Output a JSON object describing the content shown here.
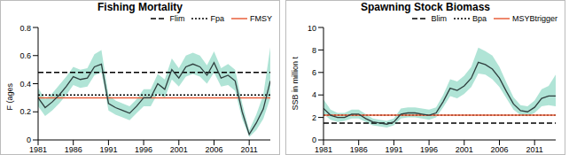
{
  "chart_data": [
    {
      "type": "line",
      "title": "Fishing Mortality",
      "y_label": "F (ages",
      "color": "#2f3f3f",
      "band_color": "#8fd8c4",
      "x": [
        1981,
        1982,
        1983,
        1984,
        1985,
        1986,
        1987,
        1988,
        1989,
        1990,
        1991,
        1992,
        1993,
        1994,
        1995,
        1996,
        1997,
        1998,
        1999,
        2000,
        2001,
        2002,
        2003,
        2004,
        2005,
        2006,
        2007,
        2008,
        2009,
        2010,
        2011,
        2012,
        2013,
        2014
      ],
      "values": [
        0.3,
        0.23,
        0.27,
        0.32,
        0.38,
        0.45,
        0.43,
        0.44,
        0.52,
        0.54,
        0.26,
        0.23,
        0.21,
        0.19,
        0.24,
        0.3,
        0.3,
        0.4,
        0.36,
        0.5,
        0.44,
        0.52,
        0.54,
        0.52,
        0.46,
        0.55,
        0.44,
        0.46,
        0.42,
        0.2,
        0.04,
        0.12,
        0.22,
        0.42
      ],
      "lower": [
        0.24,
        0.17,
        0.21,
        0.26,
        0.32,
        0.39,
        0.37,
        0.38,
        0.46,
        0.48,
        0.21,
        0.18,
        0.16,
        0.14,
        0.19,
        0.24,
        0.24,
        0.33,
        0.3,
        0.43,
        0.38,
        0.45,
        0.47,
        0.45,
        0.4,
        0.48,
        0.38,
        0.39,
        0.35,
        0.15,
        0.02,
        0.07,
        0.15,
        0.3
      ],
      "upper": [
        0.37,
        0.29,
        0.33,
        0.39,
        0.45,
        0.52,
        0.5,
        0.51,
        0.61,
        0.64,
        0.32,
        0.28,
        0.26,
        0.24,
        0.29,
        0.36,
        0.36,
        0.47,
        0.43,
        0.58,
        0.51,
        0.6,
        0.62,
        0.6,
        0.53,
        0.63,
        0.51,
        0.54,
        0.5,
        0.26,
        0.07,
        0.18,
        0.32,
        0.66
      ],
      "xlim": [
        1981,
        2014
      ],
      "xticks": [
        1981,
        1986,
        1991,
        1996,
        2001,
        2006,
        2011
      ],
      "ylim": [
        0,
        0.8
      ],
      "yticks": [
        0,
        0.2,
        0.4,
        0.6,
        0.8
      ],
      "reference_lines": [
        {
          "name": "Flim",
          "value": 0.48,
          "color": "#000000",
          "line_style": "dashed"
        },
        {
          "name": "Fpa",
          "value": 0.32,
          "color": "#000000",
          "line_style": "dotted"
        },
        {
          "name": "FMSY",
          "value": 0.3,
          "color": "#e8603c",
          "line_style": "solid"
        }
      ]
    },
    {
      "type": "line",
      "title": "Spawning Stock Biomass",
      "y_label": "SSB in million t",
      "color": "#2f3f3f",
      "band_color": "#8fd8c4",
      "x": [
        1981,
        1982,
        1983,
        1984,
        1985,
        1986,
        1987,
        1988,
        1989,
        1990,
        1991,
        1992,
        1993,
        1994,
        1995,
        1996,
        1997,
        1998,
        1999,
        2000,
        2001,
        2002,
        2003,
        2004,
        2005,
        2006,
        2007,
        2008,
        2009,
        2010,
        2011,
        2012,
        2013,
        2014
      ],
      "values": [
        2.8,
        2.2,
        2.0,
        2.0,
        2.3,
        2.3,
        1.9,
        1.6,
        1.5,
        1.4,
        1.6,
        2.3,
        2.4,
        2.4,
        2.3,
        2.2,
        2.4,
        3.4,
        4.6,
        4.4,
        4.8,
        5.5,
        6.9,
        6.7,
        6.3,
        5.5,
        4.3,
        3.2,
        2.6,
        2.5,
        2.9,
        3.7,
        3.9,
        3.9
      ],
      "lower": [
        2.3,
        1.8,
        1.6,
        1.7,
        1.9,
        1.9,
        1.6,
        1.3,
        1.2,
        1.1,
        1.3,
        1.9,
        2.0,
        2.0,
        1.9,
        1.8,
        2.0,
        2.9,
        3.9,
        3.7,
        4.1,
        4.7,
        5.9,
        5.8,
        5.4,
        4.7,
        3.7,
        2.7,
        2.2,
        2.1,
        2.4,
        3.0,
        3.1,
        3.0
      ],
      "upper": [
        3.6,
        2.7,
        2.4,
        2.4,
        2.7,
        2.7,
        2.3,
        1.9,
        1.8,
        1.7,
        1.9,
        2.8,
        2.9,
        2.9,
        2.8,
        2.7,
        2.9,
        4.0,
        5.4,
        5.2,
        5.7,
        6.5,
        8.2,
        7.9,
        7.5,
        6.5,
        5.1,
        3.8,
        3.1,
        3.0,
        3.5,
        4.5,
        4.8,
        5.8
      ],
      "xlim": [
        1981,
        2014
      ],
      "xticks": [
        1981,
        1986,
        1991,
        1996,
        2001,
        2006,
        2011
      ],
      "ylim": [
        0,
        10
      ],
      "yticks": [
        0,
        2,
        4,
        6,
        8,
        10
      ],
      "reference_lines": [
        {
          "name": "Blim",
          "value": 1.5,
          "color": "#000000",
          "line_style": "dashed"
        },
        {
          "name": "Bpa",
          "value": 2.2,
          "color": "#000000",
          "line_style": "dotted"
        },
        {
          "name": "MSYBtrigger",
          "value": 2.2,
          "color": "#e8603c",
          "line_style": "solid"
        }
      ]
    }
  ]
}
